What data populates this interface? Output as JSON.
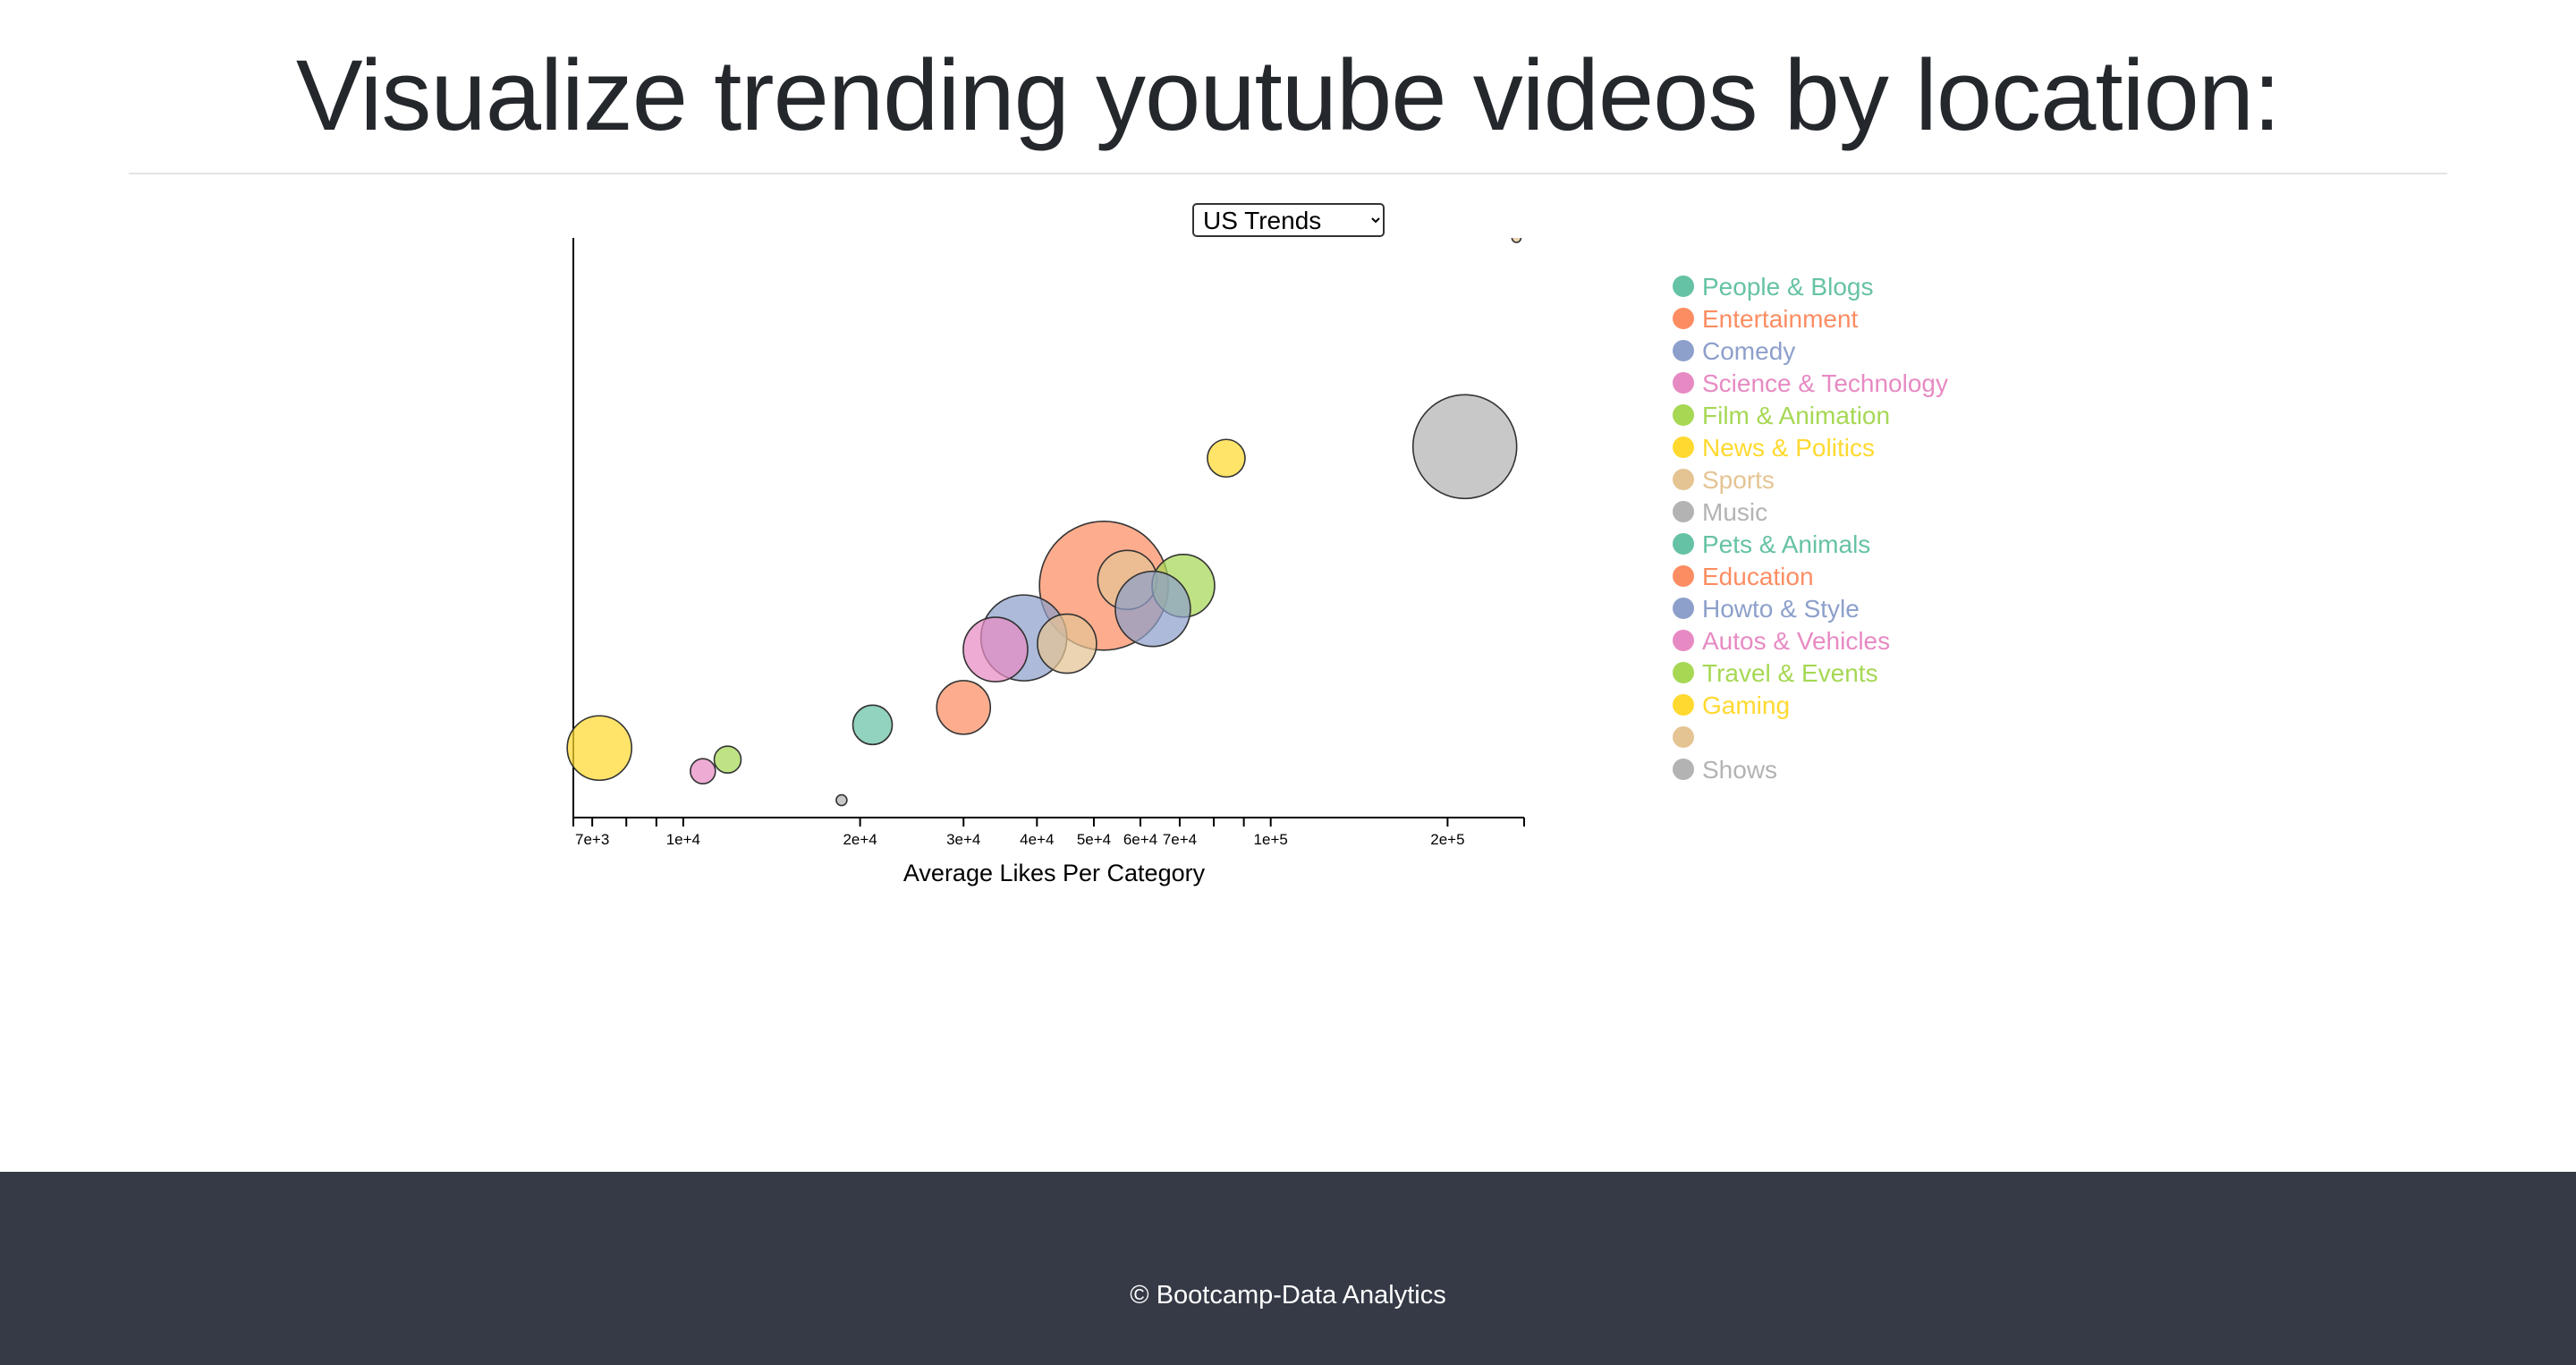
{
  "page": {
    "title": "Visualize trending youtube videos by location:",
    "footer": "© Bootcamp-Data Analytics"
  },
  "location_select": {
    "selected": "US Trends",
    "options": [
      "US Trends"
    ]
  },
  "chart_data": {
    "type": "scatter",
    "subtype": "bubble",
    "xlabel": "Average Likes Per Category",
    "ylabel": "",
    "x_scale": "log",
    "xlim": [
      6500,
      270000
    ],
    "y_axis_tick_labels_shown": false,
    "x_tick_labels": [
      "7e+3",
      "1e+4",
      "2e+4",
      "3e+4",
      "4e+4",
      "5e+4",
      "6e+4",
      "7e+4",
      "1e+5",
      "2e+5"
    ],
    "x_minor_ticks": [
      8000,
      9000,
      80000,
      90000
    ],
    "ylim": [
      0,
      100
    ],
    "grid": false,
    "legend": {
      "placement": "right",
      "entries": [
        {
          "name": "People & Blogs",
          "color": "#66c2a5"
        },
        {
          "name": "Entertainment",
          "color": "#fc8d62"
        },
        {
          "name": "Comedy",
          "color": "#8da0cb"
        },
        {
          "name": "Science & Technology",
          "color": "#e78ac3"
        },
        {
          "name": "Film & Animation",
          "color": "#a6d854"
        },
        {
          "name": "News & Politics",
          "color": "#ffd92f"
        },
        {
          "name": "Sports",
          "color": "#e5c494"
        },
        {
          "name": "Music",
          "color": "#b3b3b3"
        },
        {
          "name": "Pets & Animals",
          "color": "#66c2a5"
        },
        {
          "name": "Education",
          "color": "#fc8d62"
        },
        {
          "name": "Howto & Style",
          "color": "#8da0cb"
        },
        {
          "name": "Autos & Vehicles",
          "color": "#e78ac3"
        },
        {
          "name": "Travel & Events",
          "color": "#a6d854"
        },
        {
          "name": "Gaming",
          "color": "#ffd92f"
        },
        {
          "name": "",
          "color": "#e5c494"
        },
        {
          "name": "Shows",
          "color": "#b3b3b3"
        }
      ]
    },
    "points": [
      {
        "x": 214000,
        "y": 64,
        "r": 58,
        "color": "#b3b3b3"
      },
      {
        "x": 52000,
        "y": 40,
        "r": 72,
        "color": "#fc8d62"
      },
      {
        "x": 84000,
        "y": 62,
        "r": 21,
        "color": "#ffd92f"
      },
      {
        "x": 57000,
        "y": 41,
        "r": 33,
        "color": "#e5c494"
      },
      {
        "x": 71000,
        "y": 40,
        "r": 35,
        "color": "#a6d854"
      },
      {
        "x": 63000,
        "y": 36,
        "r": 42,
        "color": "#8da0cb"
      },
      {
        "x": 38000,
        "y": 31,
        "r": 48,
        "color": "#8da0cb"
      },
      {
        "x": 45000,
        "y": 30,
        "r": 33,
        "color": "#e5c494"
      },
      {
        "x": 34000,
        "y": 29,
        "r": 36,
        "color": "#e78ac3"
      },
      {
        "x": 30000,
        "y": 19,
        "r": 30,
        "color": "#fc8d62"
      },
      {
        "x": 21000,
        "y": 16,
        "r": 22,
        "color": "#66c2a5"
      },
      {
        "x": 7200,
        "y": 12,
        "r": 36,
        "color": "#ffd92f"
      },
      {
        "x": 11900,
        "y": 10,
        "r": 15,
        "color": "#a6d854"
      },
      {
        "x": 10800,
        "y": 8,
        "r": 14,
        "color": "#e78ac3"
      },
      {
        "x": 18600,
        "y": 3,
        "r": 6,
        "color": "#b3b3b3"
      },
      {
        "x": 262000,
        "y": 100,
        "r": 5,
        "color": "#e5c494"
      }
    ]
  }
}
